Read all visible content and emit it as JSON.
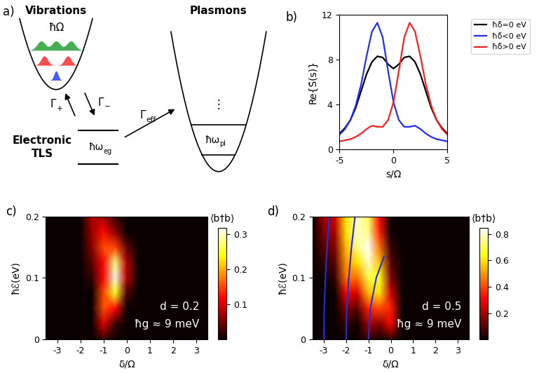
{
  "diagram": {
    "panel_label": "a)",
    "vibrations": {
      "title": "Vibrations",
      "quantum": "ħΩ"
    },
    "tls": {
      "title": "Electronic\nTLS",
      "energy": {
        "text": "ħω",
        "subscript": "eg"
      }
    },
    "plasmons": {
      "title": "Plasmons",
      "energy": {
        "text": "ħω",
        "subscript": "pl"
      },
      "dots": "⋮"
    },
    "rates": {
      "up": {
        "text": "Γ",
        "subscript": "+"
      },
      "down": {
        "text": "Γ",
        "subscript": "−"
      },
      "eff": {
        "text": "Γ",
        "subscript": "eff"
      }
    }
  },
  "chart_data": [
    {
      "type": "line",
      "panel_label": "b)",
      "x_label": "s/Ω",
      "y_label": "Re{S̃(s)}",
      "xlim": [
        -5,
        5
      ],
      "ylim": [
        0,
        12
      ],
      "xticks": [
        -5,
        0,
        5
      ],
      "yticks": [
        0,
        4,
        8,
        12
      ],
      "legend": "upper right",
      "x": [
        -5,
        -4.5,
        -4,
        -3.5,
        -3,
        -2.5,
        -2,
        -1.5,
        -1,
        -0.5,
        0,
        0.5,
        1,
        1.5,
        2,
        2.5,
        3,
        3.5,
        4,
        4.5,
        5
      ],
      "series": [
        {
          "name": "ħδ̃=0 eV",
          "color": "#000000",
          "values": [
            1.4,
            1.9,
            2.6,
            3.7,
            5.2,
            6.7,
            7.8,
            8.3,
            8.2,
            7.6,
            7.2,
            7.6,
            8.2,
            8.3,
            7.8,
            6.7,
            5.2,
            3.7,
            2.6,
            1.9,
            1.4
          ]
        },
        {
          "name": "ħδ̃<0 eV",
          "color": "#1f2fff",
          "values": [
            1.3,
            1.8,
            2.6,
            3.9,
            5.8,
            8.3,
            10.5,
            11.3,
            10.0,
            7.0,
            4.2,
            2.6,
            2.0,
            2.0,
            2.1,
            1.8,
            1.4,
            1.1,
            0.9,
            0.8,
            0.7
          ]
        },
        {
          "name": "ħδ̃>0 eV",
          "color": "#ff1f1f",
          "values": [
            0.7,
            0.8,
            0.9,
            1.1,
            1.4,
            1.8,
            2.1,
            2.0,
            2.0,
            2.6,
            4.2,
            7.0,
            10.0,
            11.3,
            10.5,
            8.3,
            5.8,
            3.9,
            2.6,
            1.8,
            1.3
          ]
        }
      ]
    },
    {
      "type": "heatmap",
      "panel_label": "c)",
      "x_label": "δ/Ω",
      "y_label": "ħℰ(eV)",
      "xlim": [
        -3.5,
        3.5
      ],
      "ylim": [
        0,
        0.2
      ],
      "xticks": [
        -3,
        -2,
        -1,
        0,
        1,
        2,
        3
      ],
      "yticks": [
        0,
        0.1,
        0.2
      ],
      "annotations": [
        "d = 0.2",
        "ħg ≈ 9 meV"
      ],
      "colorbar_label": "⟨b†b⟩",
      "zlim": [
        0,
        0.32
      ],
      "zticks": [
        0.1,
        0.2,
        0.3
      ],
      "x": [
        -3.5,
        -3,
        -2.5,
        -2,
        -1.5,
        -1,
        -0.5,
        0,
        0.5,
        1,
        1.5,
        2,
        2.5,
        3,
        3.5
      ],
      "y": [
        0,
        0.025,
        0.05,
        0.075,
        0.1,
        0.125,
        0.15,
        0.175,
        0.2
      ],
      "z": [
        [
          0,
          0,
          0,
          0,
          0,
          0.02,
          0,
          0,
          0,
          0,
          0,
          0,
          0,
          0,
          0
        ],
        [
          0,
          0,
          0,
          0,
          0,
          0.1,
          0.02,
          0,
          0,
          0,
          0,
          0,
          0,
          0,
          0
        ],
        [
          0,
          0,
          0,
          0,
          0,
          0.15,
          0.12,
          0,
          0,
          0,
          0,
          0,
          0,
          0,
          0
        ],
        [
          0,
          0,
          0,
          0,
          0,
          0.15,
          0.25,
          0.03,
          0,
          0,
          0,
          0,
          0,
          0,
          0
        ],
        [
          0,
          0,
          0,
          0,
          0.02,
          0.12,
          0.31,
          0.08,
          0,
          0,
          0,
          0,
          0,
          0,
          0
        ],
        [
          0,
          0,
          0,
          0,
          0.04,
          0.12,
          0.28,
          0.08,
          0,
          0,
          0,
          0,
          0,
          0,
          0
        ],
        [
          0,
          0,
          0,
          0,
          0.06,
          0.15,
          0.15,
          0.04,
          0,
          0,
          0,
          0,
          0,
          0,
          0
        ],
        [
          0,
          0,
          0,
          0,
          0.07,
          0.12,
          0.06,
          0,
          0,
          0,
          0,
          0,
          0,
          0,
          0
        ],
        [
          0,
          0,
          0,
          0,
          0.08,
          0.07,
          0.02,
          0,
          0,
          0,
          0,
          0,
          0,
          0,
          0
        ]
      ],
      "lines": []
    },
    {
      "type": "heatmap",
      "panel_label": "d)",
      "x_label": "δ/Ω",
      "y_label": "ħℰ(eV)",
      "xlim": [
        -3.5,
        3.5
      ],
      "ylim": [
        0,
        0.2
      ],
      "xticks": [
        -3,
        -2,
        -1,
        0,
        1,
        2,
        3
      ],
      "yticks": [
        0,
        0.1,
        0.2
      ],
      "annotations": [
        "d = 0.5",
        "ħg ≈ 9 meV"
      ],
      "colorbar_label": "⟨b†b⟩",
      "zlim": [
        0,
        0.85
      ],
      "zticks": [
        0.2,
        0.4,
        0.6,
        0.8
      ],
      "x": [
        -3.5,
        -3,
        -2.5,
        -2,
        -1.5,
        -1,
        -0.5,
        0,
        0.5,
        1,
        1.5,
        2,
        2.5,
        3,
        3.5
      ],
      "y": [
        0,
        0.025,
        0.05,
        0.075,
        0.1,
        0.125,
        0.15,
        0.175,
        0.2
      ],
      "z": [
        [
          0,
          0,
          0,
          0,
          0,
          0.05,
          0,
          0.05,
          0,
          0,
          0,
          0,
          0,
          0,
          0
        ],
        [
          0,
          0,
          0,
          0.05,
          0,
          0.2,
          0.15,
          0.3,
          0,
          0,
          0,
          0,
          0,
          0,
          0
        ],
        [
          0,
          0,
          0,
          0.15,
          0.1,
          0.35,
          0.4,
          0.35,
          0,
          0,
          0,
          0,
          0,
          0,
          0
        ],
        [
          0,
          0,
          0,
          0.3,
          0.25,
          0.55,
          0.6,
          0.25,
          0,
          0,
          0,
          0,
          0,
          0,
          0
        ],
        [
          0,
          0,
          0.05,
          0.45,
          0.45,
          0.7,
          0.65,
          0.15,
          0,
          0,
          0,
          0,
          0,
          0,
          0
        ],
        [
          0,
          0.05,
          0.1,
          0.5,
          0.6,
          0.8,
          0.55,
          0.1,
          0,
          0,
          0,
          0,
          0,
          0,
          0
        ],
        [
          0,
          0.1,
          0.15,
          0.55,
          0.75,
          0.85,
          0.45,
          0.05,
          0,
          0,
          0,
          0,
          0,
          0,
          0
        ],
        [
          0,
          0.15,
          0.2,
          0.6,
          0.8,
          0.75,
          0.35,
          0,
          0,
          0,
          0,
          0,
          0,
          0,
          0
        ],
        [
          0,
          0.2,
          0.25,
          0.6,
          0.8,
          0.7,
          0.3,
          0,
          0,
          0,
          0,
          0,
          0,
          0,
          0
        ]
      ],
      "lines": [
        {
          "color": "#1f2fdf",
          "x": [
            -3,
            -2.98,
            -2.93,
            -2.85,
            -2.75
          ],
          "y": [
            0,
            0.05,
            0.1,
            0.15,
            0.2
          ]
        },
        {
          "color": "#1f2fdf",
          "x": [
            -2,
            -1.97,
            -1.88,
            -1.76,
            -1.6
          ],
          "y": [
            0,
            0.05,
            0.1,
            0.15,
            0.2
          ]
        },
        {
          "color": "#1f2fdf",
          "x": [
            -1,
            -0.92,
            -0.65,
            -0.3
          ],
          "y": [
            0,
            0.05,
            0.1,
            0.135
          ]
        }
      ]
    }
  ]
}
